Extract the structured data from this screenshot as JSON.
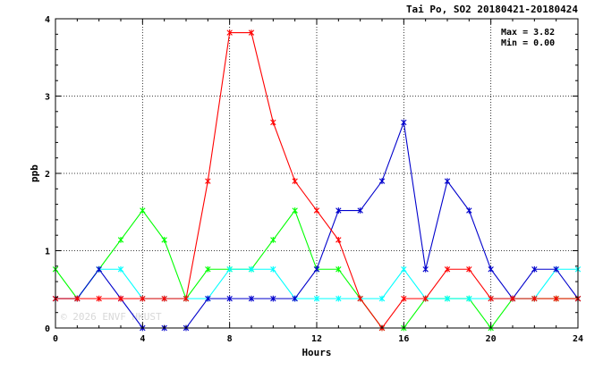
{
  "chart_data": {
    "type": "line",
    "title": "Tai Po, SO2 20180421-20180424",
    "xlabel": "Hours",
    "ylabel": "ppb",
    "xlim": [
      0,
      24
    ],
    "ylim": [
      0,
      4
    ],
    "x_ticks": [
      0,
      4,
      8,
      12,
      16,
      20,
      24
    ],
    "y_ticks": [
      0,
      1,
      2,
      3,
      4
    ],
    "grid": "dotted",
    "stats": [
      "Max = 3.82",
      "Min = 0.00"
    ],
    "watermark": "© 2026 ENVF HKUST",
    "x": [
      0,
      1,
      2,
      3,
      4,
      5,
      6,
      7,
      8,
      9,
      10,
      11,
      12,
      13,
      14,
      15,
      16,
      17,
      18,
      19,
      20,
      21,
      22,
      23,
      24
    ],
    "series": [
      {
        "color": "#00ff00",
        "values": [
          0.76,
          0.38,
          0.76,
          1.14,
          1.52,
          1.14,
          0.38,
          0.76,
          0.76,
          0.76,
          1.14,
          1.52,
          0.76,
          0.76,
          0.38,
          0.0,
          0.0,
          0.38,
          0.38,
          0.38,
          0.0,
          0.38,
          0.38,
          0.38,
          0.38
        ]
      },
      {
        "color": "#00ffff",
        "values": [
          0.38,
          0.38,
          0.76,
          0.76,
          0.38,
          0.38,
          0.38,
          0.38,
          0.76,
          0.76,
          0.76,
          0.38,
          0.38,
          0.38,
          0.38,
          0.38,
          0.76,
          0.38,
          0.38,
          0.38,
          0.38,
          0.38,
          0.38,
          0.76,
          0.76
        ]
      },
      {
        "color": "#0000cc",
        "values": [
          0.38,
          0.38,
          0.76,
          0.38,
          0.0,
          0.0,
          0.0,
          0.38,
          0.38,
          0.38,
          0.38,
          0.38,
          0.76,
          1.52,
          1.52,
          1.9,
          2.66,
          0.76,
          1.9,
          1.52,
          0.76,
          0.38,
          0.76,
          0.76,
          0.38
        ]
      },
      {
        "color": "#ff0000",
        "values": [
          0.38,
          0.38,
          0.38,
          0.38,
          0.38,
          0.38,
          0.38,
          1.9,
          3.82,
          3.82,
          2.66,
          1.9,
          1.52,
          1.14,
          0.38,
          0.0,
          0.38,
          0.38,
          0.76,
          0.76,
          0.38,
          0.38,
          0.38,
          0.38,
          0.38
        ]
      }
    ]
  }
}
